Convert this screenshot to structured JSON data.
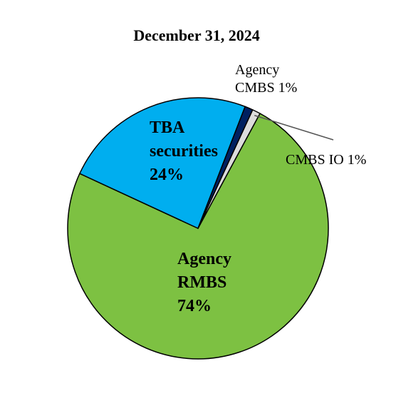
{
  "chart_data": {
    "type": "pie",
    "title": "December 31, 2024",
    "slices": [
      {
        "label_lines": [
          "Agency",
          "RMBS",
          "74%"
        ],
        "value": 74,
        "color": "#7dc142"
      },
      {
        "label_lines": [
          "TBA",
          "securities",
          "24%"
        ],
        "value": 24,
        "color": "#00aeef"
      },
      {
        "label_lines": [
          "Agency",
          "CMBS 1%"
        ],
        "value": 1,
        "color": "#002060"
      },
      {
        "label_lines": [
          "CMBS IO 1%"
        ],
        "value": 1,
        "color": "#dcdcdc"
      }
    ],
    "outline_color": "#000000",
    "leader_line_color": "#555555"
  }
}
